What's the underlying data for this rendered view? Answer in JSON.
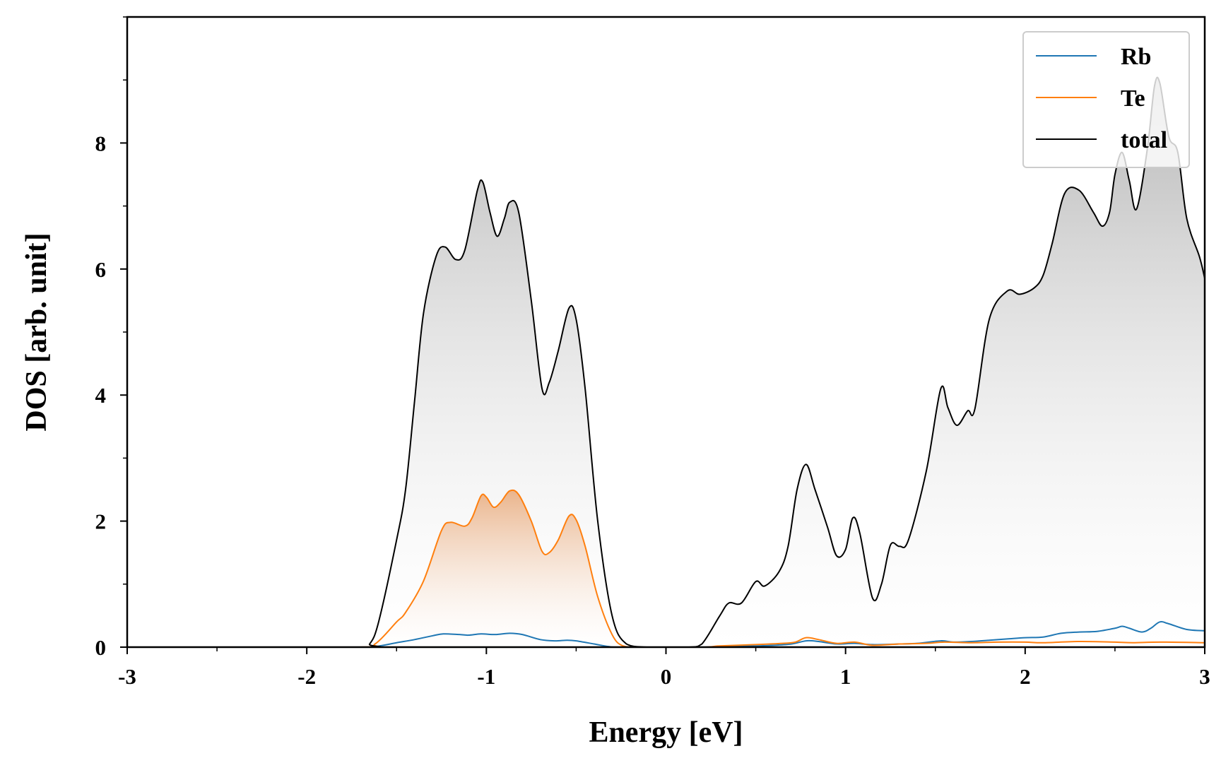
{
  "chart_data": {
    "type": "area",
    "title": "",
    "xlabel": "Energy [eV]",
    "ylabel": "DOS [arb. unit]",
    "xlim": [
      -3,
      3
    ],
    "ylim": [
      0,
      10
    ],
    "xticks": [
      -3,
      -2,
      -1,
      0,
      1,
      2,
      3
    ],
    "xtick_labels": [
      "-3",
      "-2",
      "-1",
      "0",
      "1",
      "2",
      "3"
    ],
    "yticks": [
      0,
      2,
      4,
      6,
      8
    ],
    "ytick_labels": [
      "0",
      "2",
      "4",
      "6",
      "8"
    ],
    "grid": false,
    "legend_position": "top-right",
    "series": [
      {
        "name": "Rb",
        "color": "#1f77b4",
        "fill": false,
        "points": [
          [
            -3,
            0
          ],
          [
            -1.75,
            0
          ],
          [
            -1.62,
            0.01
          ],
          [
            -1.5,
            0.07
          ],
          [
            -1.4,
            0.12
          ],
          [
            -1.3,
            0.18
          ],
          [
            -1.24,
            0.21
          ],
          [
            -1.15,
            0.2
          ],
          [
            -1.1,
            0.19
          ],
          [
            -1.03,
            0.21
          ],
          [
            -0.95,
            0.2
          ],
          [
            -0.87,
            0.22
          ],
          [
            -0.8,
            0.2
          ],
          [
            -0.7,
            0.12
          ],
          [
            -0.62,
            0.1
          ],
          [
            -0.55,
            0.11
          ],
          [
            -0.5,
            0.1
          ],
          [
            -0.4,
            0.05
          ],
          [
            -0.32,
            0.01
          ],
          [
            -0.25,
            0
          ],
          [
            0.2,
            0
          ],
          [
            0.3,
            0.01
          ],
          [
            0.5,
            0.02
          ],
          [
            0.6,
            0.03
          ],
          [
            0.7,
            0.05
          ],
          [
            0.78,
            0.1
          ],
          [
            0.85,
            0.09
          ],
          [
            0.95,
            0.05
          ],
          [
            1.05,
            0.06
          ],
          [
            1.15,
            0.04
          ],
          [
            1.3,
            0.05
          ],
          [
            1.4,
            0.06
          ],
          [
            1.53,
            0.1
          ],
          [
            1.6,
            0.08
          ],
          [
            1.7,
            0.09
          ],
          [
            1.8,
            0.11
          ],
          [
            1.9,
            0.13
          ],
          [
            2.0,
            0.15
          ],
          [
            2.1,
            0.16
          ],
          [
            2.2,
            0.22
          ],
          [
            2.3,
            0.24
          ],
          [
            2.4,
            0.25
          ],
          [
            2.5,
            0.3
          ],
          [
            2.54,
            0.33
          ],
          [
            2.58,
            0.3
          ],
          [
            2.65,
            0.24
          ],
          [
            2.7,
            0.3
          ],
          [
            2.75,
            0.4
          ],
          [
            2.8,
            0.37
          ],
          [
            2.9,
            0.28
          ],
          [
            3.0,
            0.26
          ]
        ]
      },
      {
        "name": "Te",
        "color": "#ff7f0e",
        "fill": true,
        "points": [
          [
            -3,
            0
          ],
          [
            -1.72,
            0
          ],
          [
            -1.62,
            0.05
          ],
          [
            -1.5,
            0.4
          ],
          [
            -1.45,
            0.55
          ],
          [
            -1.35,
            1.05
          ],
          [
            -1.25,
            1.85
          ],
          [
            -1.2,
            1.98
          ],
          [
            -1.12,
            1.92
          ],
          [
            -1.08,
            2.05
          ],
          [
            -1.03,
            2.4
          ],
          [
            -1.0,
            2.38
          ],
          [
            -0.96,
            2.22
          ],
          [
            -0.92,
            2.3
          ],
          [
            -0.87,
            2.48
          ],
          [
            -0.82,
            2.42
          ],
          [
            -0.75,
            2.0
          ],
          [
            -0.69,
            1.52
          ],
          [
            -0.65,
            1.5
          ],
          [
            -0.6,
            1.7
          ],
          [
            -0.54,
            2.08
          ],
          [
            -0.5,
            2.02
          ],
          [
            -0.45,
            1.6
          ],
          [
            -0.38,
            0.8
          ],
          [
            -0.3,
            0.2
          ],
          [
            -0.24,
            0.02
          ],
          [
            -0.15,
            0
          ],
          [
            0.2,
            0
          ],
          [
            0.3,
            0.02
          ],
          [
            0.5,
            0.04
          ],
          [
            0.65,
            0.06
          ],
          [
            0.72,
            0.08
          ],
          [
            0.78,
            0.15
          ],
          [
            0.85,
            0.12
          ],
          [
            0.95,
            0.06
          ],
          [
            1.05,
            0.08
          ],
          [
            1.15,
            0.03
          ],
          [
            1.3,
            0.05
          ],
          [
            1.45,
            0.06
          ],
          [
            1.55,
            0.08
          ],
          [
            1.7,
            0.07
          ],
          [
            1.85,
            0.08
          ],
          [
            2.0,
            0.08
          ],
          [
            2.1,
            0.07
          ],
          [
            2.3,
            0.09
          ],
          [
            2.5,
            0.08
          ],
          [
            2.6,
            0.07
          ],
          [
            2.75,
            0.08
          ],
          [
            3.0,
            0.07
          ]
        ]
      },
      {
        "name": "total",
        "color": "#000000",
        "fill": true,
        "points": [
          [
            -3,
            0
          ],
          [
            -1.7,
            0
          ],
          [
            -1.65,
            0.05
          ],
          [
            -1.6,
            0.4
          ],
          [
            -1.5,
            1.7
          ],
          [
            -1.45,
            2.5
          ],
          [
            -1.4,
            3.9
          ],
          [
            -1.35,
            5.3
          ],
          [
            -1.28,
            6.2
          ],
          [
            -1.23,
            6.35
          ],
          [
            -1.17,
            6.15
          ],
          [
            -1.12,
            6.3
          ],
          [
            -1.05,
            7.25
          ],
          [
            -1.02,
            7.38
          ],
          [
            -0.98,
            6.9
          ],
          [
            -0.94,
            6.52
          ],
          [
            -0.9,
            6.8
          ],
          [
            -0.87,
            7.06
          ],
          [
            -0.82,
            6.9
          ],
          [
            -0.75,
            5.5
          ],
          [
            -0.69,
            4.1
          ],
          [
            -0.65,
            4.2
          ],
          [
            -0.6,
            4.7
          ],
          [
            -0.54,
            5.38
          ],
          [
            -0.5,
            5.2
          ],
          [
            -0.45,
            4.1
          ],
          [
            -0.38,
            2.0
          ],
          [
            -0.3,
            0.5
          ],
          [
            -0.22,
            0.05
          ],
          [
            -0.1,
            0
          ],
          [
            0.13,
            0
          ],
          [
            0.2,
            0.05
          ],
          [
            0.3,
            0.5
          ],
          [
            0.35,
            0.7
          ],
          [
            0.42,
            0.7
          ],
          [
            0.5,
            1.04
          ],
          [
            0.55,
            0.97
          ],
          [
            0.63,
            1.2
          ],
          [
            0.68,
            1.6
          ],
          [
            0.73,
            2.5
          ],
          [
            0.78,
            2.9
          ],
          [
            0.83,
            2.5
          ],
          [
            0.9,
            1.9
          ],
          [
            0.95,
            1.45
          ],
          [
            1.0,
            1.55
          ],
          [
            1.04,
            2.05
          ],
          [
            1.08,
            1.8
          ],
          [
            1.15,
            0.78
          ],
          [
            1.2,
            1.0
          ],
          [
            1.25,
            1.62
          ],
          [
            1.3,
            1.6
          ],
          [
            1.35,
            1.7
          ],
          [
            1.45,
            2.8
          ],
          [
            1.53,
            4.1
          ],
          [
            1.57,
            3.8
          ],
          [
            1.62,
            3.52
          ],
          [
            1.68,
            3.75
          ],
          [
            1.72,
            3.78
          ],
          [
            1.8,
            5.2
          ],
          [
            1.9,
            5.65
          ],
          [
            1.97,
            5.6
          ],
          [
            2.05,
            5.7
          ],
          [
            2.1,
            5.9
          ],
          [
            2.15,
            6.4
          ],
          [
            2.22,
            7.2
          ],
          [
            2.3,
            7.25
          ],
          [
            2.38,
            6.9
          ],
          [
            2.43,
            6.68
          ],
          [
            2.47,
            6.9
          ],
          [
            2.5,
            7.5
          ],
          [
            2.54,
            7.85
          ],
          [
            2.58,
            7.4
          ],
          [
            2.62,
            6.95
          ],
          [
            2.68,
            7.9
          ],
          [
            2.72,
            8.9
          ],
          [
            2.75,
            8.95
          ],
          [
            2.8,
            8.1
          ],
          [
            2.85,
            7.85
          ],
          [
            2.9,
            6.8
          ],
          [
            2.97,
            6.2
          ],
          [
            3.0,
            5.85
          ]
        ]
      }
    ]
  }
}
